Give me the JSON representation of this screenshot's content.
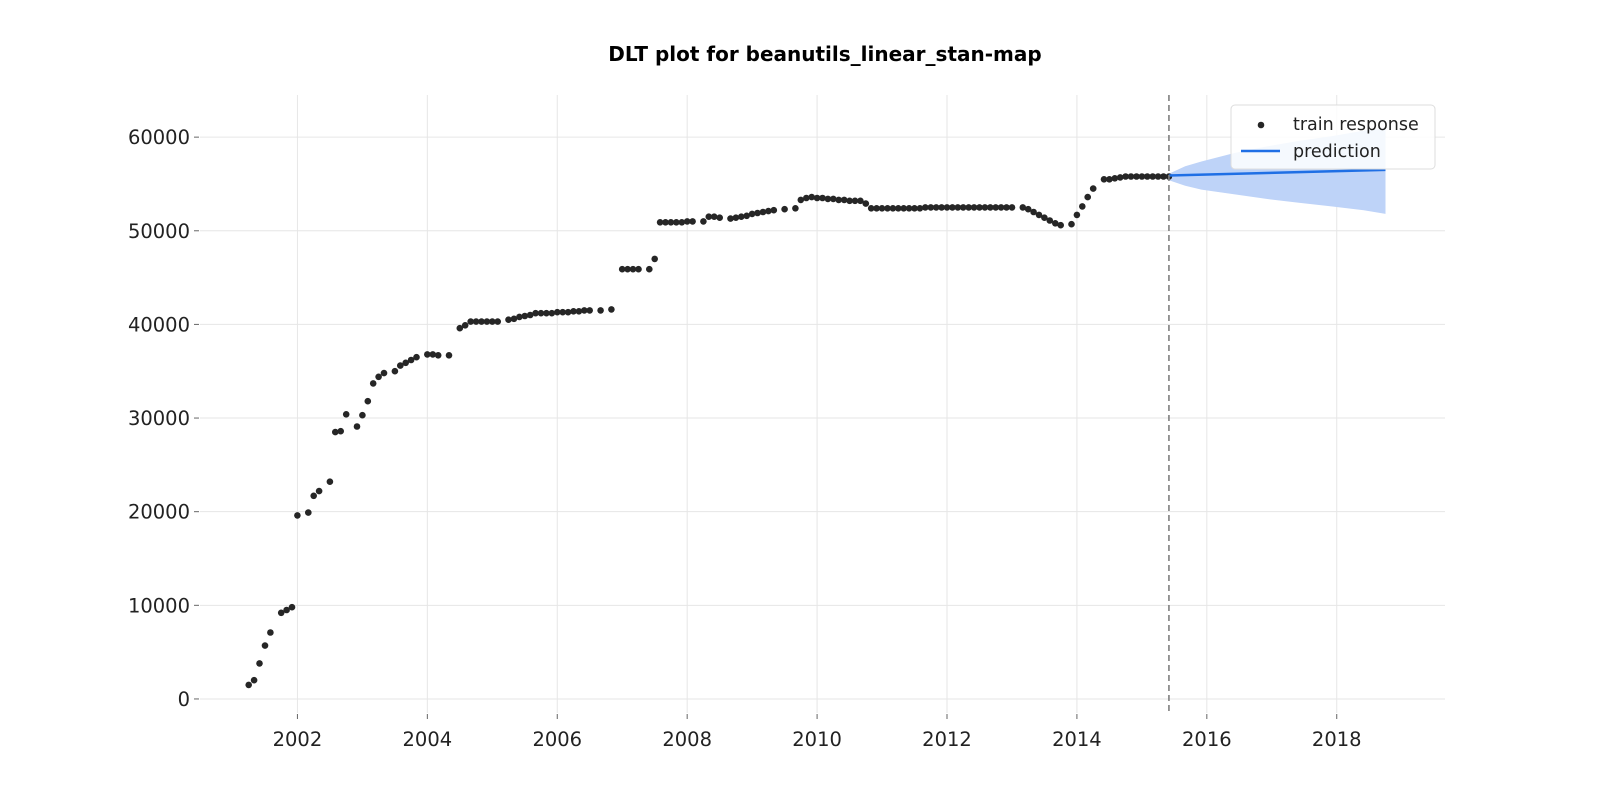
{
  "chart_data": {
    "type": "scatter",
    "title": "DLT plot for beanutils_linear_stan-map",
    "xlabel": "",
    "ylabel": "",
    "x_ticks": [
      "2002",
      "2004",
      "2006",
      "2008",
      "2010",
      "2012",
      "2014",
      "2016",
      "2018"
    ],
    "y_ticks": [
      "0",
      "10000",
      "20000",
      "30000",
      "40000",
      "50000",
      "60000"
    ],
    "xlim": [
      "2000-07-01",
      "2019-09-01"
    ],
    "ylim": [
      -1500,
      64500
    ],
    "grid": true,
    "legend_position": "top-right",
    "split_date": "2015-06-01",
    "colors": {
      "points": "#262626",
      "prediction": "#1f6fe5",
      "band": "#bed3f8",
      "split_line": "#7f7f7f",
      "grid": "#e6e6e6"
    },
    "series": [
      {
        "name": "train response",
        "kind": "scatter",
        "points": [
          [
            "2001-04-01",
            1500
          ],
          [
            "2001-05-01",
            2000
          ],
          [
            "2001-06-01",
            3800
          ],
          [
            "2001-07-01",
            5700
          ],
          [
            "2001-08-01",
            7100
          ],
          [
            "2001-10-01",
            9200
          ],
          [
            "2001-11-01",
            9500
          ],
          [
            "2001-12-01",
            9800
          ],
          [
            "2002-01-01",
            19600
          ],
          [
            "2002-03-01",
            19900
          ],
          [
            "2002-04-01",
            21700
          ],
          [
            "2002-05-01",
            22200
          ],
          [
            "2002-07-01",
            23200
          ],
          [
            "2002-08-01",
            28500
          ],
          [
            "2002-09-01",
            28600
          ],
          [
            "2002-10-01",
            30400
          ],
          [
            "2002-12-01",
            29100
          ],
          [
            "2003-01-01",
            30300
          ],
          [
            "2003-02-01",
            31800
          ],
          [
            "2003-03-01",
            33700
          ],
          [
            "2003-04-01",
            34400
          ],
          [
            "2003-05-01",
            34800
          ],
          [
            "2003-07-01",
            35000
          ],
          [
            "2003-08-01",
            35600
          ],
          [
            "2003-09-01",
            35900
          ],
          [
            "2003-10-01",
            36200
          ],
          [
            "2003-11-01",
            36500
          ],
          [
            "2004-01-01",
            36800
          ],
          [
            "2004-02-01",
            36800
          ],
          [
            "2004-03-01",
            36700
          ],
          [
            "2004-05-01",
            36700
          ],
          [
            "2004-07-01",
            39600
          ],
          [
            "2004-08-01",
            39900
          ],
          [
            "2004-09-01",
            40300
          ],
          [
            "2004-10-01",
            40300
          ],
          [
            "2004-11-01",
            40300
          ],
          [
            "2004-12-01",
            40300
          ],
          [
            "2005-01-01",
            40300
          ],
          [
            "2005-02-01",
            40300
          ],
          [
            "2005-04-01",
            40500
          ],
          [
            "2005-05-01",
            40600
          ],
          [
            "2005-06-01",
            40800
          ],
          [
            "2005-07-01",
            40900
          ],
          [
            "2005-08-01",
            41000
          ],
          [
            "2005-09-01",
            41200
          ],
          [
            "2005-10-01",
            41200
          ],
          [
            "2005-11-01",
            41200
          ],
          [
            "2005-12-01",
            41200
          ],
          [
            "2006-01-01",
            41300
          ],
          [
            "2006-02-01",
            41300
          ],
          [
            "2006-03-01",
            41300
          ],
          [
            "2006-04-01",
            41400
          ],
          [
            "2006-05-01",
            41400
          ],
          [
            "2006-06-01",
            41500
          ],
          [
            "2006-07-01",
            41500
          ],
          [
            "2006-09-01",
            41500
          ],
          [
            "2006-11-01",
            41600
          ],
          [
            "2007-01-01",
            45900
          ],
          [
            "2007-02-01",
            45900
          ],
          [
            "2007-03-01",
            45900
          ],
          [
            "2007-04-01",
            45900
          ],
          [
            "2007-06-01",
            45900
          ],
          [
            "2007-07-01",
            47000
          ],
          [
            "2007-08-01",
            50900
          ],
          [
            "2007-09-01",
            50900
          ],
          [
            "2007-10-01",
            50900
          ],
          [
            "2007-11-01",
            50900
          ],
          [
            "2007-12-01",
            50900
          ],
          [
            "2008-01-01",
            51000
          ],
          [
            "2008-02-01",
            51000
          ],
          [
            "2008-04-01",
            51000
          ],
          [
            "2008-05-01",
            51500
          ],
          [
            "2008-06-01",
            51500
          ],
          [
            "2008-07-01",
            51400
          ],
          [
            "2008-09-01",
            51300
          ],
          [
            "2008-10-01",
            51400
          ],
          [
            "2008-11-01",
            51500
          ],
          [
            "2008-12-01",
            51600
          ],
          [
            "2009-01-01",
            51800
          ],
          [
            "2009-02-01",
            51900
          ],
          [
            "2009-03-01",
            52000
          ],
          [
            "2009-04-01",
            52100
          ],
          [
            "2009-05-01",
            52200
          ],
          [
            "2009-07-01",
            52300
          ],
          [
            "2009-09-01",
            52400
          ],
          [
            "2009-10-01",
            53300
          ],
          [
            "2009-11-01",
            53500
          ],
          [
            "2009-12-01",
            53600
          ],
          [
            "2010-01-01",
            53500
          ],
          [
            "2010-02-01",
            53500
          ],
          [
            "2010-03-01",
            53400
          ],
          [
            "2010-04-01",
            53400
          ],
          [
            "2010-05-01",
            53300
          ],
          [
            "2010-06-01",
            53300
          ],
          [
            "2010-07-01",
            53200
          ],
          [
            "2010-08-01",
            53200
          ],
          [
            "2010-09-01",
            53200
          ],
          [
            "2010-10-01",
            52900
          ],
          [
            "2010-11-01",
            52400
          ],
          [
            "2010-12-01",
            52400
          ],
          [
            "2011-01-01",
            52400
          ],
          [
            "2011-02-01",
            52400
          ],
          [
            "2011-03-01",
            52400
          ],
          [
            "2011-04-01",
            52400
          ],
          [
            "2011-05-01",
            52400
          ],
          [
            "2011-06-01",
            52400
          ],
          [
            "2011-07-01",
            52400
          ],
          [
            "2011-08-01",
            52400
          ],
          [
            "2011-09-01",
            52500
          ],
          [
            "2011-10-01",
            52500
          ],
          [
            "2011-11-01",
            52500
          ],
          [
            "2011-12-01",
            52500
          ],
          [
            "2012-01-01",
            52500
          ],
          [
            "2012-02-01",
            52500
          ],
          [
            "2012-03-01",
            52500
          ],
          [
            "2012-04-01",
            52500
          ],
          [
            "2012-05-01",
            52500
          ],
          [
            "2012-06-01",
            52500
          ],
          [
            "2012-07-01",
            52500
          ],
          [
            "2012-08-01",
            52500
          ],
          [
            "2012-09-01",
            52500
          ],
          [
            "2012-10-01",
            52500
          ],
          [
            "2012-11-01",
            52500
          ],
          [
            "2012-12-01",
            52500
          ],
          [
            "2013-01-01",
            52500
          ],
          [
            "2013-03-01",
            52500
          ],
          [
            "2013-04-01",
            52300
          ],
          [
            "2013-05-01",
            52000
          ],
          [
            "2013-06-01",
            51700
          ],
          [
            "2013-07-01",
            51400
          ],
          [
            "2013-08-01",
            51100
          ],
          [
            "2013-09-01",
            50800
          ],
          [
            "2013-10-01",
            50600
          ],
          [
            "2013-12-01",
            50700
          ],
          [
            "2014-01-01",
            51700
          ],
          [
            "2014-02-01",
            52600
          ],
          [
            "2014-03-01",
            53600
          ],
          [
            "2014-04-01",
            54500
          ],
          [
            "2014-06-01",
            55500
          ],
          [
            "2014-07-01",
            55500
          ],
          [
            "2014-08-01",
            55600
          ],
          [
            "2014-09-01",
            55700
          ],
          [
            "2014-10-01",
            55800
          ],
          [
            "2014-11-01",
            55800
          ],
          [
            "2014-12-01",
            55800
          ],
          [
            "2015-01-01",
            55800
          ],
          [
            "2015-02-01",
            55800
          ],
          [
            "2015-03-01",
            55800
          ],
          [
            "2015-04-01",
            55800
          ],
          [
            "2015-05-01",
            55800
          ],
          [
            "2015-06-01",
            55800
          ]
        ]
      },
      {
        "name": "prediction",
        "kind": "line",
        "points": [
          [
            "2015-06-01",
            55900
          ],
          [
            "2018-10-01",
            56500
          ]
        ],
        "band": [
          [
            "2015-06-01",
            56100,
            55400
          ],
          [
            "2015-09-01",
            56900,
            54800
          ],
          [
            "2015-12-01",
            57400,
            54400
          ],
          [
            "2016-06-01",
            58300,
            53900
          ],
          [
            "2016-12-01",
            59000,
            53400
          ],
          [
            "2017-06-01",
            59600,
            53000
          ],
          [
            "2017-12-01",
            60100,
            52600
          ],
          [
            "2018-06-01",
            60700,
            52200
          ],
          [
            "2018-10-01",
            61000,
            51800
          ]
        ]
      }
    ]
  }
}
